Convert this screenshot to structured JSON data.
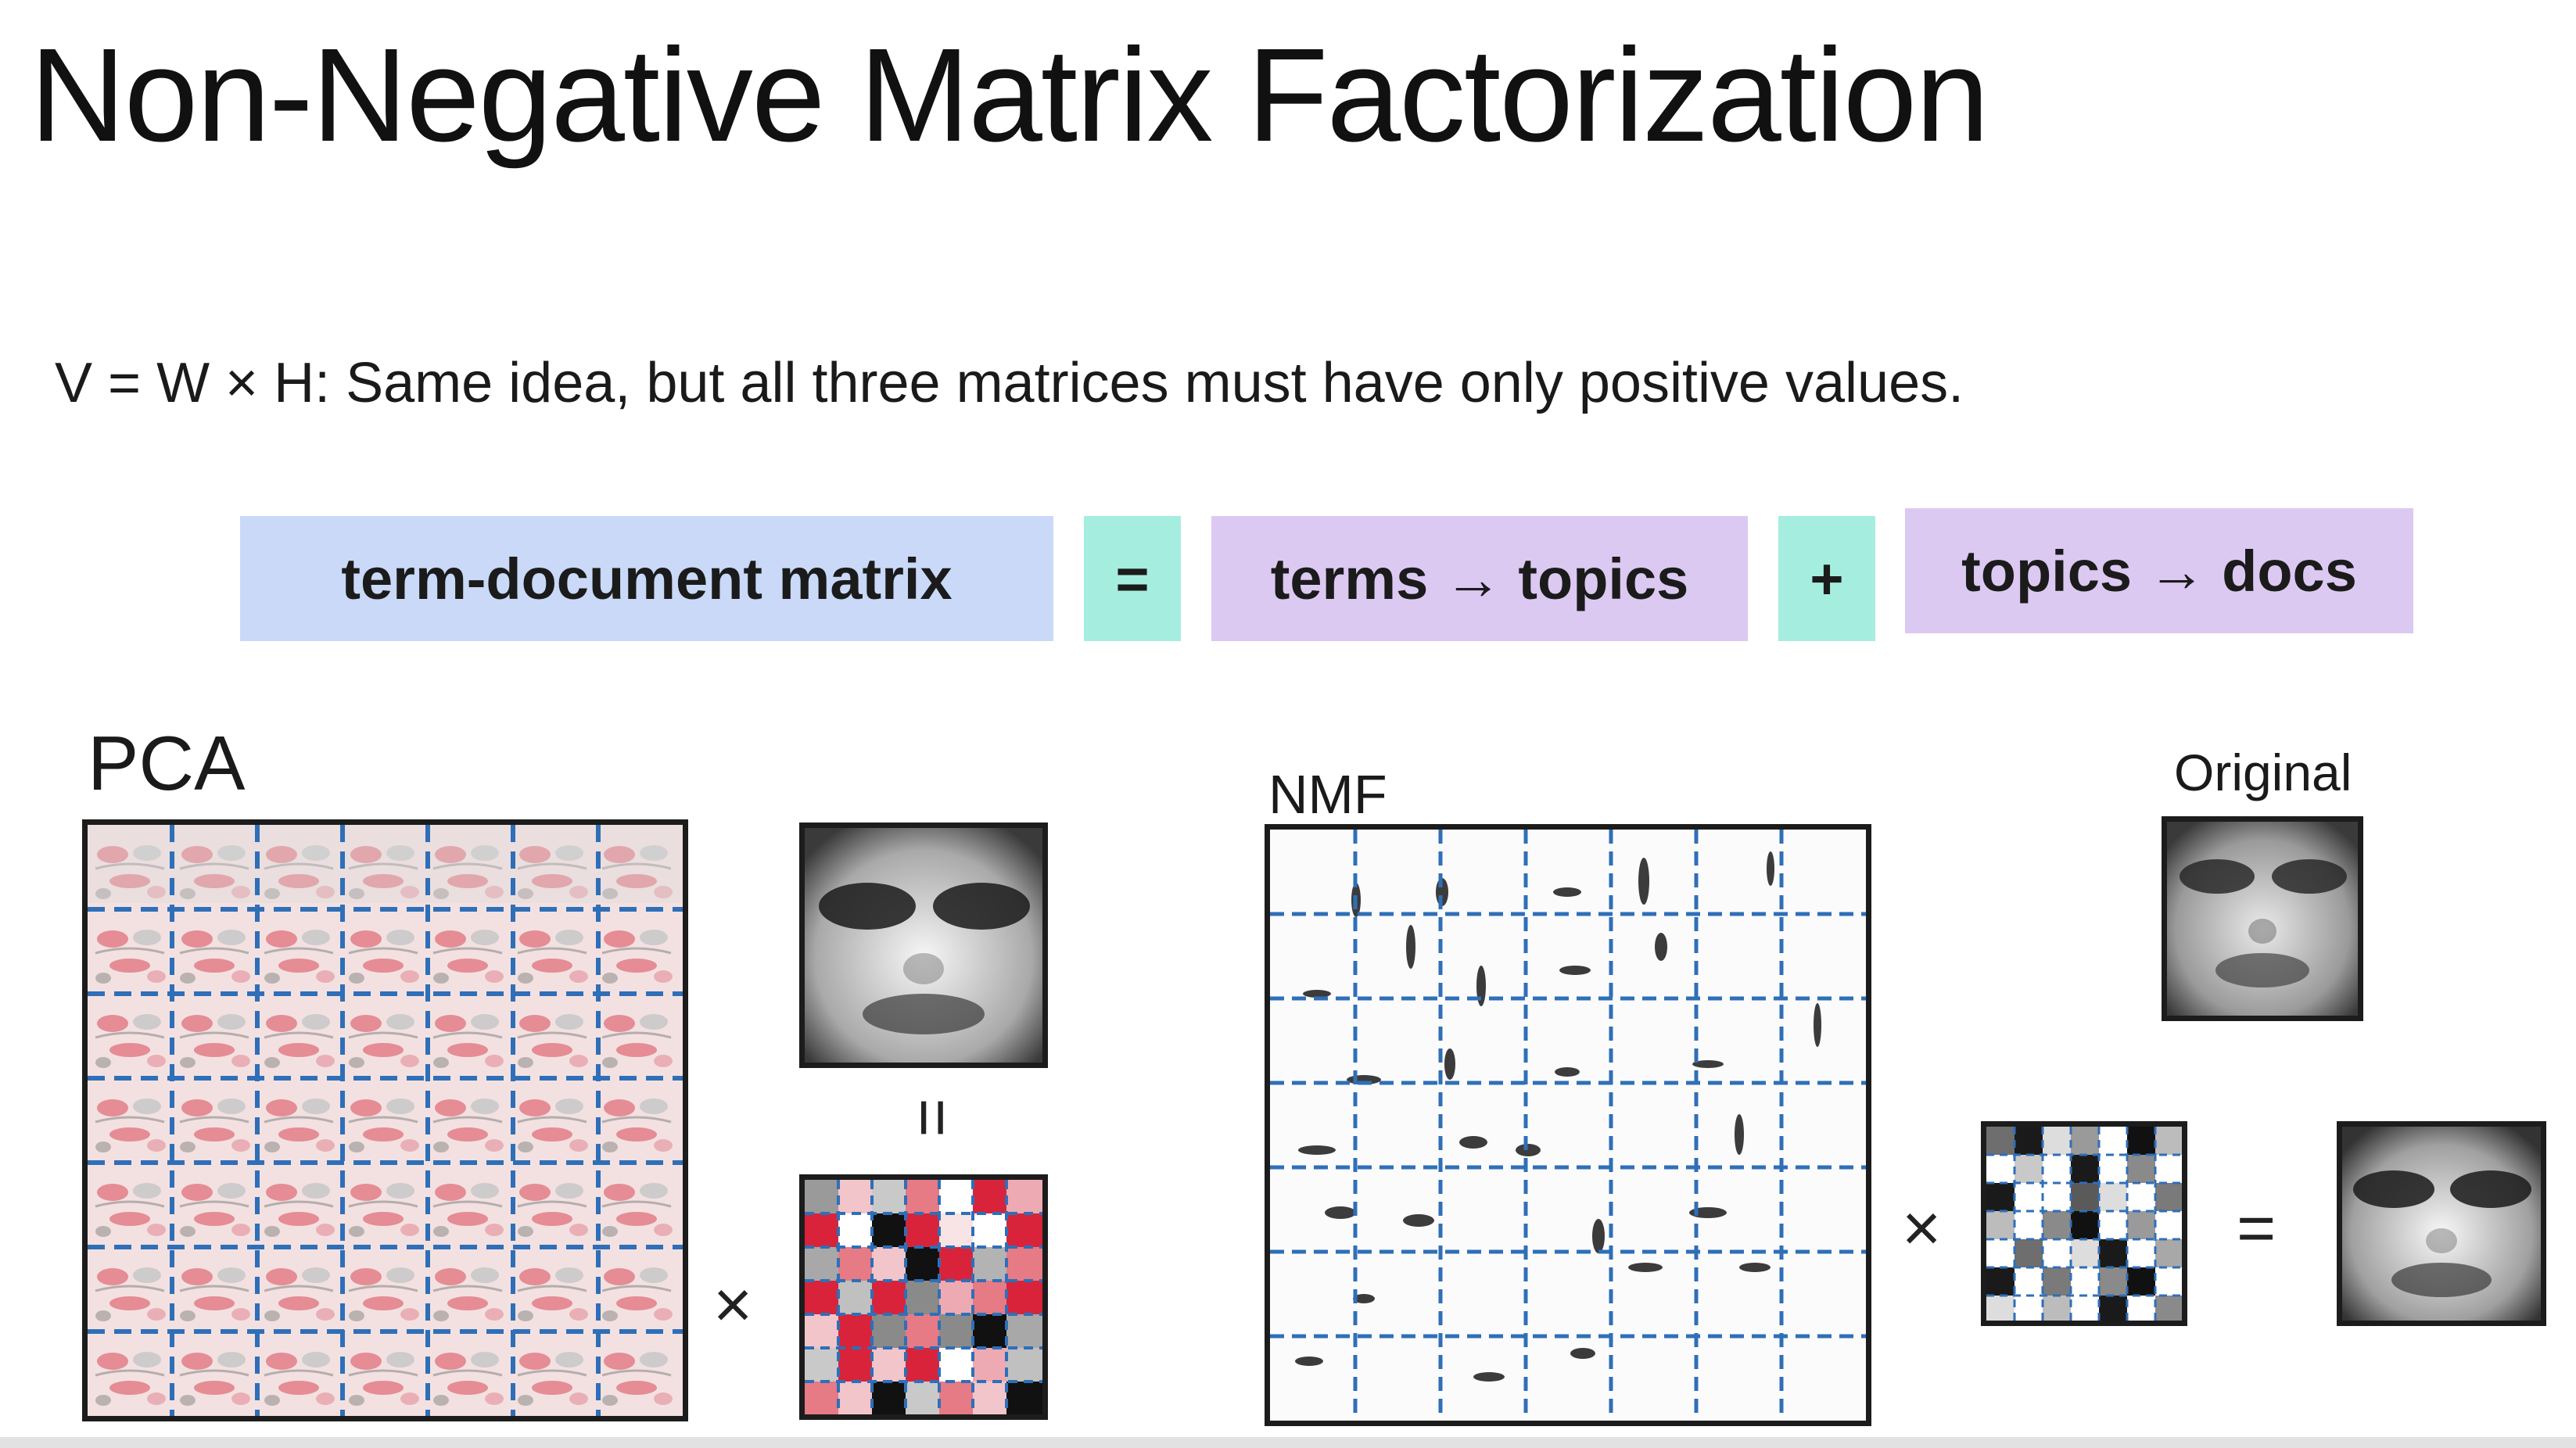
{
  "slide": {
    "title": "Non-Negative Matrix Factorization",
    "subtitle": "V = W × H: Same idea, but all three matrices must have only positive values."
  },
  "equation": {
    "term_doc": "term-document matrix",
    "equals": "=",
    "terms_topics": "terms → topics",
    "plus": "+",
    "topics_docs": "topics → docs",
    "colors": {
      "blue": "#c9d9f7",
      "purple": "#dcc9f2",
      "teal": "#a5eedf"
    }
  },
  "figure": {
    "pca_label": "PCA",
    "nmf_label": "NMF",
    "original_label": "Original",
    "pca_equals": "=",
    "pca_times": "×",
    "nmf_times": "×",
    "nmf_equals": "=",
    "colors": {
      "grid_line": "#2f6fb8",
      "pca_red": "#d8233a",
      "frame": "#1c1c1c"
    }
  }
}
